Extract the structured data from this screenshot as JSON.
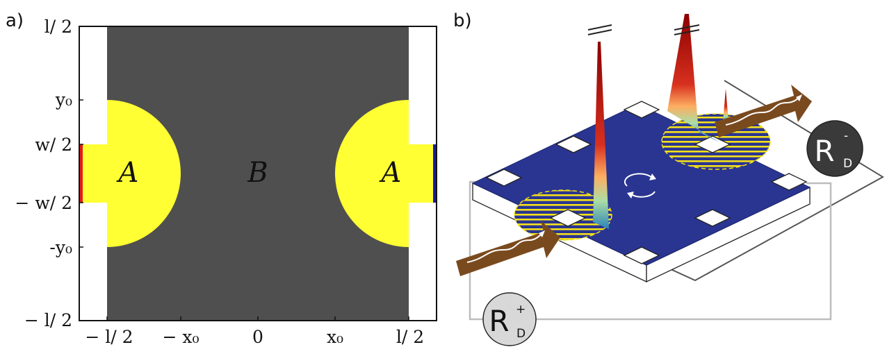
{
  "panels": {
    "a": {
      "label": "a)",
      "y_ticks": [
        {
          "text": "l/ 2",
          "value": 0.5
        },
        {
          "text": "y₀",
          "value": 0.25
        },
        {
          "text": "w/ 2",
          "value": 0.1
        },
        {
          "text": "− w/ 2",
          "value": -0.1
        },
        {
          "text": "-y₀",
          "value": -0.25
        },
        {
          "text": "− l/ 2",
          "value": -0.5
        }
      ],
      "x_ticks": [
        {
          "text": "− l/ 2",
          "value": -0.5
        },
        {
          "text": "− x₀",
          "value": -0.25
        },
        {
          "text": "0",
          "value": 0
        },
        {
          "text": "x₀",
          "value": 0.25
        },
        {
          "text": "l/ 2",
          "value": 0.5
        }
      ],
      "region_A_label": "A",
      "region_B_label": "B",
      "colors": {
        "region_b": "#4f4f4f",
        "region_a": "#ffff33",
        "lead_left": "#e31a1c",
        "lead_right": "#1a1aa0",
        "gap": "#ffffff"
      }
    },
    "b": {
      "label": "b)",
      "r_minus": {
        "main": "R",
        "sub": "D",
        "sup": "-"
      },
      "r_plus": {
        "main": "R",
        "sub": "D",
        "sup": "+"
      },
      "colors": {
        "plate": "#2a3591",
        "arrow": "#7a4a1f",
        "hatch": "#f5e11a",
        "circle_dark": "#3a3a3a",
        "circle_light": "#d8d8d8",
        "wire_dark": "#555555",
        "wire_light": "#bdbdbd"
      }
    }
  }
}
